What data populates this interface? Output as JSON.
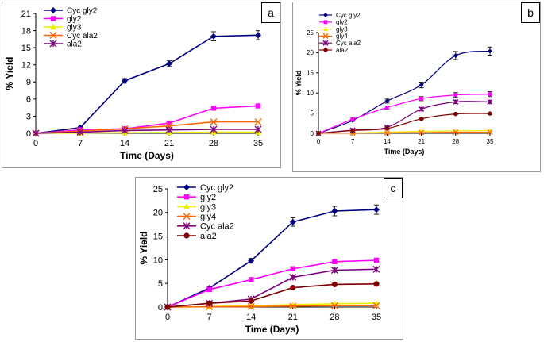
{
  "chart_data": [
    {
      "panel": "a",
      "type": "line",
      "xlabel": "Time (Days)",
      "ylabel": "% Yield",
      "x": [
        0,
        7,
        14,
        21,
        28,
        35
      ],
      "xticks": [
        "0",
        "7",
        "14",
        "21",
        "28",
        "35"
      ],
      "yticks": [
        "0",
        "3",
        "6",
        "9",
        "12",
        "15",
        "18",
        "21"
      ],
      "ylim": [
        0,
        21
      ],
      "series": [
        {
          "name": "Cyc gly2",
          "color": "#00007f",
          "marker": "diamond",
          "values": [
            0,
            1.0,
            9.2,
            12.2,
            17.0,
            17.2
          ],
          "errors": [
            0,
            0.2,
            0.4,
            0.5,
            0.8,
            0.8
          ]
        },
        {
          "name": "gly2",
          "color": "#ff00ff",
          "marker": "square",
          "values": [
            0,
            0.6,
            0.8,
            1.8,
            4.4,
            4.8
          ],
          "errors": [
            0,
            0,
            0,
            0,
            0,
            0
          ]
        },
        {
          "name": "gly3",
          "color": "#eeee00",
          "marker": "triangle",
          "values": [
            0,
            0.05,
            0.1,
            0.15,
            0.2,
            0.2
          ],
          "errors": [
            0,
            0,
            0,
            0,
            0,
            0
          ]
        },
        {
          "name": "Cyc ala2",
          "color": "#ff6600",
          "marker": "x",
          "values": [
            0,
            0.4,
            0.8,
            1.3,
            2.0,
            2.0
          ],
          "errors": [
            0,
            0,
            0,
            0,
            0,
            0
          ]
        },
        {
          "name": "ala2",
          "color": "#7f007f",
          "marker": "star",
          "values": [
            0,
            0.2,
            0.5,
            0.6,
            0.7,
            0.7
          ],
          "errors": [
            0,
            0,
            0,
            0,
            0,
            0
          ]
        }
      ],
      "panel_label": "a"
    },
    {
      "panel": "b",
      "type": "line",
      "xlabel": "Time (Days)",
      "ylabel": "% Yield",
      "x": [
        0,
        7,
        14,
        21,
        28,
        35
      ],
      "xticks": [
        "0",
        "7",
        "14",
        "21",
        "28",
        "35"
      ],
      "yticks": [
        "0",
        "5",
        "10",
        "15",
        "20",
        "25"
      ],
      "ylim": [
        0,
        25
      ],
      "series": [
        {
          "name": "Cyc gly2",
          "color": "#00007f",
          "marker": "diamond",
          "values": [
            0,
            3.2,
            8.0,
            12.0,
            19.3,
            20.4
          ],
          "errors": [
            0,
            0.2,
            0.5,
            0.7,
            1.0,
            1.0
          ]
        },
        {
          "name": "gly2",
          "color": "#ff00ff",
          "marker": "square",
          "values": [
            0,
            3.5,
            6.4,
            8.6,
            9.5,
            9.7
          ],
          "errors": [
            0,
            0.2,
            0.4,
            0.5,
            0.6,
            0.6
          ]
        },
        {
          "name": "gly3",
          "color": "#eeee00",
          "marker": "triangle",
          "values": [
            0,
            0.1,
            0.3,
            0.5,
            0.6,
            0.7
          ],
          "errors": [
            0,
            0,
            0,
            0,
            0,
            0
          ]
        },
        {
          "name": "gly4",
          "color": "#ff6600",
          "marker": "x",
          "values": [
            0,
            0.05,
            0.1,
            0.2,
            0.3,
            0.3
          ],
          "errors": [
            0,
            0,
            0,
            0,
            0,
            0
          ]
        },
        {
          "name": "Cyc ala2",
          "color": "#7f007f",
          "marker": "star",
          "values": [
            0,
            0.8,
            1.5,
            6.0,
            7.8,
            7.8
          ],
          "errors": [
            0,
            0,
            0.2,
            0.4,
            0.4,
            0.4
          ]
        },
        {
          "name": "ala2",
          "color": "#7f0000",
          "marker": "circle",
          "values": [
            0,
            0.7,
            1.2,
            3.6,
            4.8,
            4.9
          ],
          "errors": [
            0,
            0,
            0,
            0.2,
            0.2,
            0.2
          ]
        }
      ],
      "panel_label": "b"
    },
    {
      "panel": "c",
      "type": "line",
      "xlabel": "Time (Days)",
      "ylabel": "% Yield",
      "x": [
        0,
        7,
        14,
        21,
        28,
        35
      ],
      "xticks": [
        "0",
        "7",
        "14",
        "21",
        "28",
        "35"
      ],
      "yticks": [
        "0",
        "5",
        "10",
        "15",
        "20",
        "25"
      ],
      "ylim": [
        0,
        25
      ],
      "series": [
        {
          "name": "Cyc gly2",
          "color": "#00007f",
          "marker": "diamond",
          "values": [
            0,
            4.0,
            9.8,
            18.0,
            20.3,
            20.6
          ],
          "errors": [
            0,
            0.2,
            0.5,
            0.9,
            1.0,
            1.0
          ]
        },
        {
          "name": "gly2",
          "color": "#ff00ff",
          "marker": "square",
          "values": [
            0,
            3.7,
            5.8,
            8.1,
            9.6,
            9.9
          ],
          "errors": [
            0,
            0,
            0,
            0.2,
            0.3,
            0.3
          ]
        },
        {
          "name": "gly3",
          "color": "#eeee00",
          "marker": "triangle",
          "values": [
            0,
            0.1,
            0.3,
            0.5,
            0.7,
            0.8
          ],
          "errors": [
            0,
            0,
            0,
            0,
            0,
            0
          ]
        },
        {
          "name": "gly4",
          "color": "#ff6600",
          "marker": "x",
          "values": [
            0,
            0.05,
            0.1,
            0.2,
            0.3,
            0.3
          ],
          "errors": [
            0,
            0,
            0,
            0,
            0,
            0
          ]
        },
        {
          "name": "Cyc ala2",
          "color": "#7f007f",
          "marker": "star",
          "values": [
            0,
            0.8,
            1.7,
            6.3,
            7.8,
            8.0
          ],
          "errors": [
            0,
            0,
            0.2,
            0.4,
            0.4,
            0.4
          ]
        },
        {
          "name": "ala2",
          "color": "#7f0000",
          "marker": "circle",
          "values": [
            0,
            0.8,
            1.3,
            4.1,
            4.8,
            4.9
          ],
          "errors": [
            0,
            0,
            0,
            0.2,
            0.2,
            0.2
          ]
        }
      ],
      "panel_label": "c"
    }
  ]
}
